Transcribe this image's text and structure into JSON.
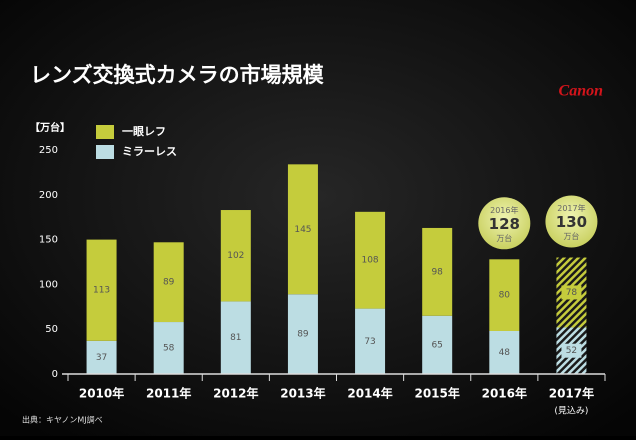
{
  "chart_data": {
    "type": "bar",
    "stacked": true,
    "title": "レンズ交換式カメラの市場規模",
    "logo": "Canon",
    "y_unit": "【万台】",
    "source": "出典：キヤノンMJ調べ",
    "categories": [
      "2010年",
      "2011年",
      "2012年",
      "2013年",
      "2014年",
      "2015年",
      "2016年",
      "2017年"
    ],
    "category_notes": [
      null,
      null,
      null,
      null,
      null,
      null,
      null,
      "(見込み)"
    ],
    "series": [
      {
        "name": "一眼レフ",
        "color": "#c5cc3c",
        "values": [
          113,
          89,
          102,
          145,
          108,
          98,
          80,
          78
        ]
      },
      {
        "name": "ミラーレス",
        "color": "#bcdde3",
        "values": [
          37,
          58,
          81,
          89,
          73,
          65,
          48,
          52
        ]
      }
    ],
    "ylim": [
      0,
      250
    ],
    "yticks": [
      0,
      50,
      100,
      150,
      200,
      250
    ],
    "annotations": [
      {
        "year": "2016年",
        "total": 128,
        "unit": "万台",
        "category": 6
      },
      {
        "year": "2017年",
        "total": 130,
        "unit": "万台",
        "category": 7
      }
    ]
  }
}
